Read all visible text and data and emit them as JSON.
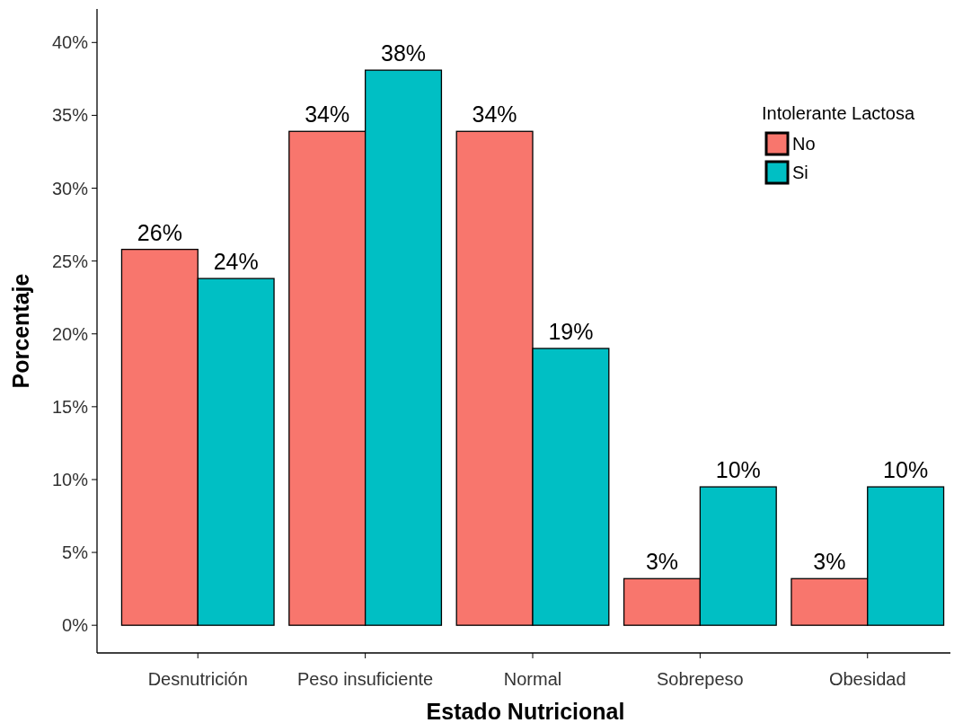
{
  "chart_data": {
    "type": "bar",
    "xlabel": "Estado Nutricional",
    "ylabel": "Porcentaje",
    "legend_title": "Intolerante Lactosa",
    "categories": [
      "Desnutrición",
      "Peso insuficiente",
      "Normal",
      "Sobrepeso",
      "Obesidad"
    ],
    "series": [
      {
        "name": "No",
        "color": "#f8766d",
        "values": [
          25.8,
          33.9,
          33.9,
          3.2,
          3.2
        ],
        "value_labels": [
          "26%",
          "34%",
          "34%",
          "3%",
          "3%"
        ]
      },
      {
        "name": "Si",
        "color": "#00bfc4",
        "values": [
          23.8,
          38.1,
          19.0,
          9.5,
          9.5
        ],
        "value_labels": [
          "24%",
          "38%",
          "19%",
          "10%",
          "10%"
        ]
      }
    ],
    "ylim": [
      -1.9,
      42.3
    ],
    "yticks": [
      {
        "value": 0,
        "label": "0%"
      },
      {
        "value": 5,
        "label": "5%"
      },
      {
        "value": 10,
        "label": "10%"
      },
      {
        "value": 15,
        "label": "15%"
      },
      {
        "value": 20,
        "label": "20%"
      },
      {
        "value": 25,
        "label": "25%"
      },
      {
        "value": 30,
        "label": "30%"
      },
      {
        "value": 35,
        "label": "35%"
      },
      {
        "value": 40,
        "label": "40%"
      }
    ],
    "grid": false,
    "legend": "top right"
  }
}
